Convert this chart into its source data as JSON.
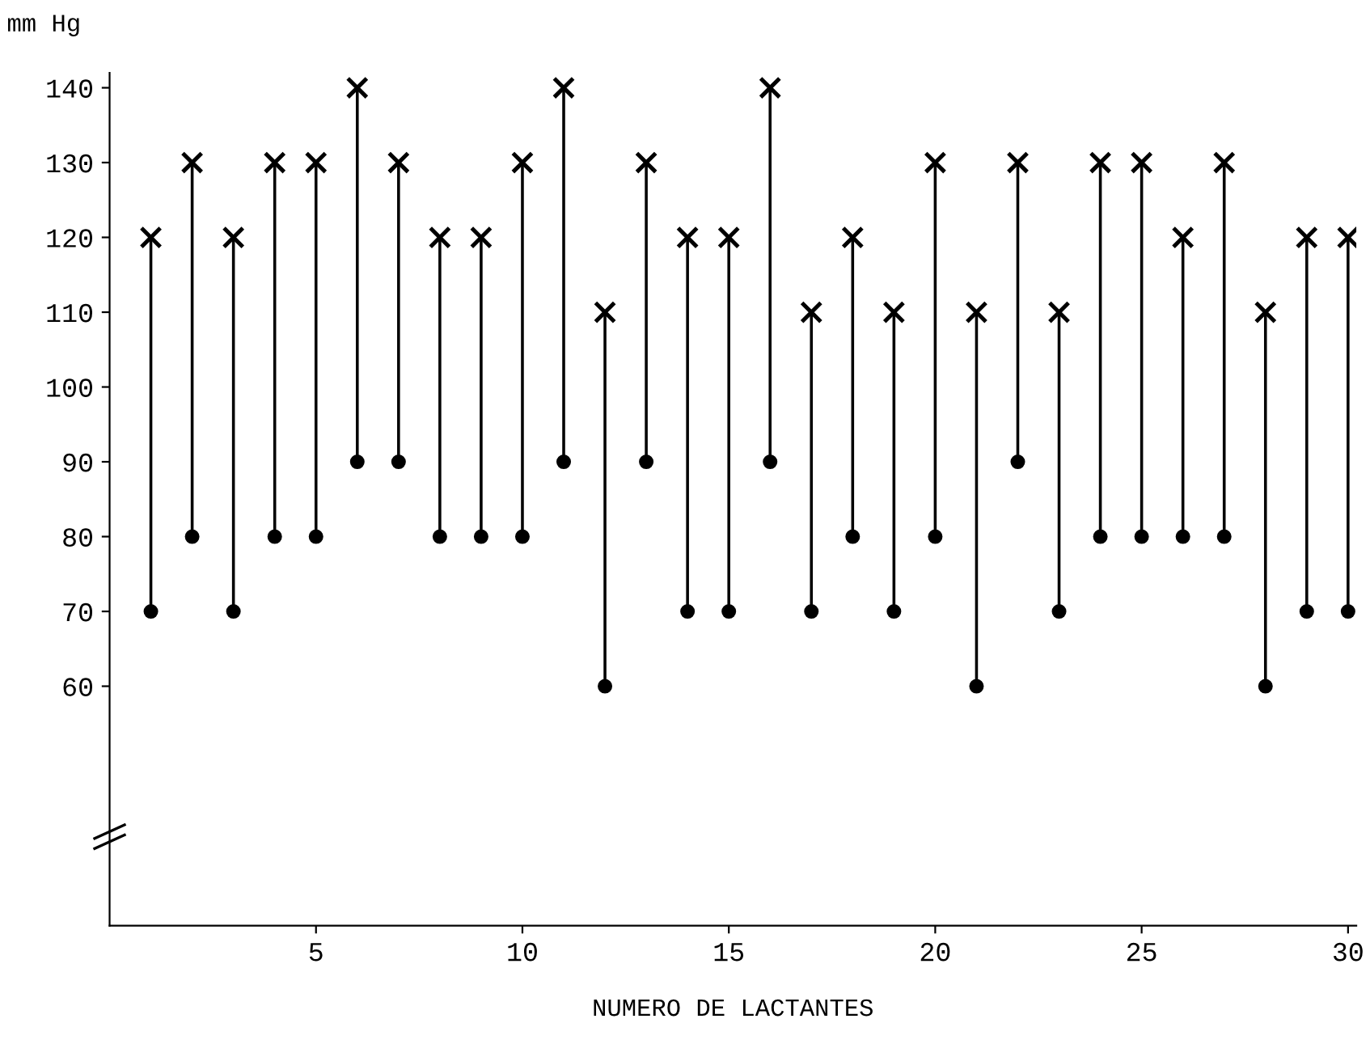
{
  "chart_data": {
    "type": "bar",
    "xlabel": "NUMERO DE LACTANTES",
    "ylabel": "mm Hg",
    "x": [
      1,
      2,
      3,
      4,
      5,
      6,
      7,
      8,
      9,
      10,
      11,
      12,
      13,
      14,
      15,
      16,
      17,
      18,
      19,
      20,
      21,
      22,
      23,
      24,
      25,
      26,
      27,
      28,
      29,
      30
    ],
    "series": [
      {
        "color": "#000000",
        "base": [
          70,
          80,
          70,
          80,
          80,
          90,
          90,
          80,
          80,
          80,
          90,
          60,
          90,
          70,
          70,
          90,
          70,
          80,
          70,
          80,
          60,
          90,
          70,
          80,
          80,
          80,
          80,
          60,
          70,
          70
        ],
        "values": [
          50,
          50,
          50,
          50,
          50,
          50,
          40,
          40,
          40,
          50,
          50,
          50,
          40,
          50,
          50,
          50,
          40,
          40,
          40,
          50,
          50,
          40,
          40,
          50,
          50,
          40,
          50,
          50,
          50,
          50
        ]
      },
      {
        "type": "scatter",
        "marker": "cross",
        "color": "#000000",
        "values": [
          120,
          130,
          120,
          130,
          130,
          140,
          130,
          120,
          120,
          130,
          140,
          110,
          130,
          120,
          120,
          140,
          110,
          120,
          110,
          130,
          110,
          130,
          110,
          130,
          130,
          120,
          130,
          110,
          120,
          120
        ]
      },
      {
        "type": "scatter",
        "marker": "circle",
        "color": "#000000",
        "values": [
          70,
          80,
          70,
          80,
          80,
          90,
          90,
          80,
          80,
          80,
          90,
          60,
          90,
          70,
          70,
          90,
          70,
          80,
          70,
          80,
          60,
          90,
          70,
          80,
          80,
          80,
          80,
          60,
          70,
          70
        ]
      }
    ],
    "xlim": [
      0,
      30.2
    ],
    "xticks": [
      5,
      10,
      15,
      20,
      25,
      30
    ],
    "ylim": [
      28,
      142
    ],
    "yticks": [
      60,
      70,
      80,
      90,
      100,
      110,
      120,
      130,
      140
    ],
    "grid": false,
    "legend": false
  }
}
